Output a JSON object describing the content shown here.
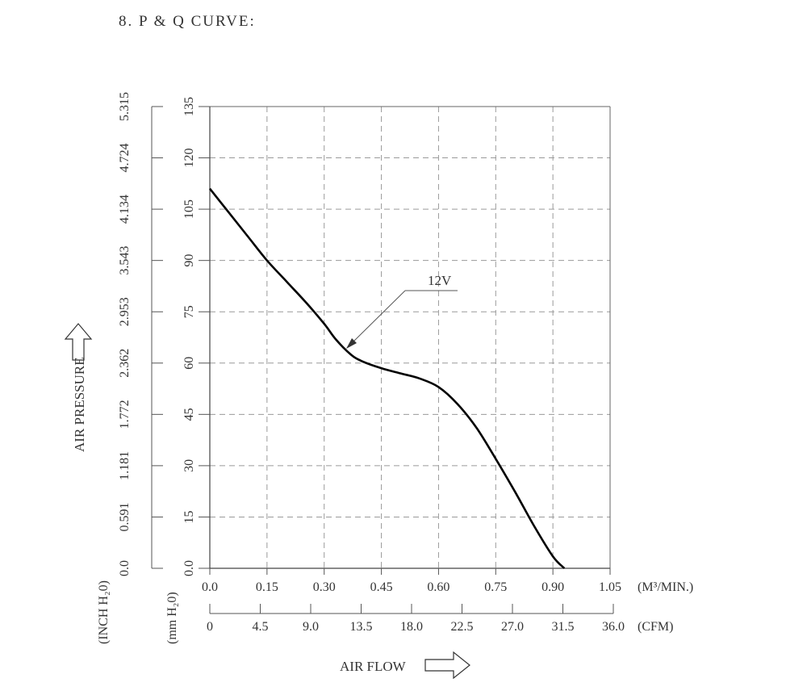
{
  "title": "8. P & Q CURVE:",
  "chart_data": {
    "type": "line",
    "title": "8. P & Q CURVE:",
    "xlabel": "AIR FLOW",
    "ylabel": "AIR PRESSURE",
    "x_unit_primary": "(M³/MIN.)",
    "x_unit_secondary": "(CFM)",
    "y_unit_primary": "(mm H₂0)",
    "y_unit_secondary": "(INCH H₂0)",
    "xlim": [
      0,
      1.05
    ],
    "ylim": [
      0,
      135
    ],
    "grid": true,
    "x_ticks_m3": [
      "0.0",
      "0.15",
      "0.30",
      "0.45",
      "0.60",
      "0.75",
      "0.90",
      "1.05"
    ],
    "x_ticks_cfm": [
      "0",
      "4.5",
      "9.0",
      "13.5",
      "18.0",
      "22.5",
      "27.0",
      "31.5",
      "36.0"
    ],
    "y_ticks_mm": [
      "0.0",
      "15",
      "30",
      "45",
      "60",
      "75",
      "90",
      "105",
      "120",
      "135"
    ],
    "y_ticks_inch": [
      "0.0",
      "0.591",
      "1.181",
      "1.772",
      "2.362",
      "2.953",
      "3.543",
      "4.134",
      "4.724",
      "5.315"
    ],
    "series": [
      {
        "name": "12V",
        "x": [
          0.0,
          0.05,
          0.1,
          0.15,
          0.2,
          0.25,
          0.3,
          0.33,
          0.37,
          0.4,
          0.45,
          0.5,
          0.55,
          0.6,
          0.65,
          0.7,
          0.75,
          0.8,
          0.85,
          0.9,
          0.93
        ],
        "y": [
          111,
          104,
          97,
          90,
          84,
          78,
          71.5,
          67,
          62.5,
          60.5,
          58.5,
          57,
          55.5,
          53,
          48,
          41,
          32,
          22.5,
          12.5,
          3.5,
          0
        ]
      }
    ]
  }
}
